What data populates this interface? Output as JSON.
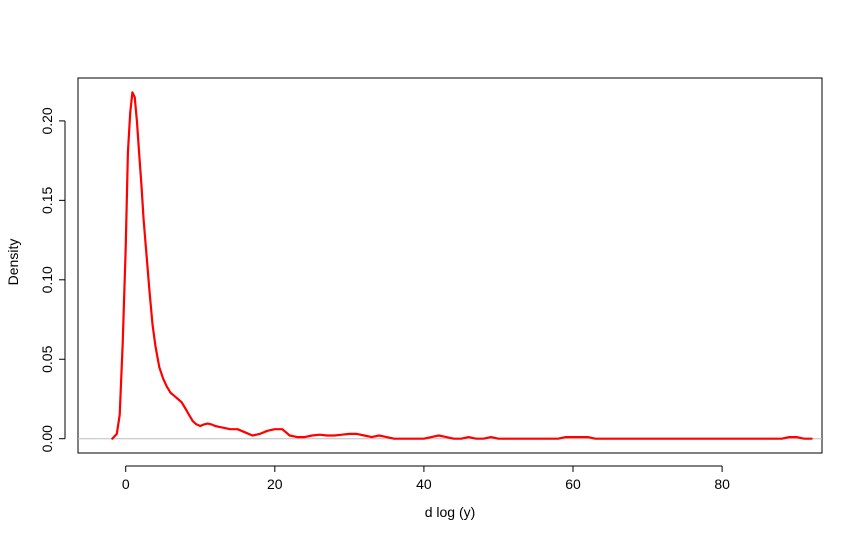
{
  "chart_data": {
    "type": "line",
    "title": "",
    "xlabel": "d log (y)",
    "ylabel": "Density",
    "xlim": [
      -6.4,
      93.4
    ],
    "ylim": [
      -0.009,
      0.227
    ],
    "x_ticks": [
      0,
      20,
      40,
      60,
      80
    ],
    "y_ticks": [
      0.0,
      0.05,
      0.1,
      0.15,
      0.2
    ],
    "x_tick_labels": [
      "0",
      "20",
      "40",
      "60",
      "80"
    ],
    "y_tick_labels": [
      "0.00",
      "0.05",
      "0.10",
      "0.15",
      "0.20"
    ],
    "grid": false,
    "baseline": 0,
    "line_color": "#ff0000",
    "baseline_color": "#bebebe",
    "series": [
      {
        "x": [
          -1.8,
          -1.2,
          -0.8,
          -0.4,
          0,
          0.3,
          0.6,
          0.9,
          1.2,
          1.5,
          1.8,
          2.1,
          2.4,
          2.8,
          3.2,
          3.6,
          4.0,
          4.5,
          5.0,
          5.5,
          6.0,
          6.5,
          7.0,
          7.5,
          8.0,
          8.5,
          9.0,
          9.5,
          10.0,
          10.5,
          11.0,
          11.5,
          12.0,
          12.5,
          13.0,
          14.0,
          15.0,
          16.0,
          17.0,
          18.0,
          19.0,
          20.0,
          21.0,
          22.0,
          23.0,
          24.0,
          25.0,
          26.0,
          27.0,
          28.0,
          29.0,
          30.0,
          31.0,
          32.0,
          33.0,
          34.0,
          35.0,
          36.0,
          37.0,
          38.0,
          39.0,
          40.0,
          41.0,
          42.0,
          43.0,
          44.0,
          45.0,
          46.0,
          47.0,
          48.0,
          49.0,
          50.0,
          52.0,
          54.0,
          56.0,
          58.0,
          59.0,
          60.0,
          61.0,
          62.0,
          63.0,
          65.0,
          70.0,
          75.0,
          80.0,
          85.0,
          88.0,
          89.0,
          90.0,
          91.0,
          92.0
        ],
        "y": [
          0.0,
          0.003,
          0.015,
          0.06,
          0.12,
          0.18,
          0.205,
          0.218,
          0.215,
          0.2,
          0.18,
          0.16,
          0.138,
          0.115,
          0.092,
          0.072,
          0.058,
          0.045,
          0.038,
          0.033,
          0.029,
          0.027,
          0.025,
          0.023,
          0.019,
          0.015,
          0.011,
          0.009,
          0.008,
          0.009,
          0.0095,
          0.009,
          0.008,
          0.0075,
          0.007,
          0.006,
          0.006,
          0.004,
          0.002,
          0.003,
          0.005,
          0.006,
          0.006,
          0.002,
          0.001,
          0.001,
          0.002,
          0.0025,
          0.002,
          0.002,
          0.0025,
          0.003,
          0.003,
          0.002,
          0.001,
          0.002,
          0.001,
          0.0,
          0.0,
          0.0,
          0.0,
          0.0,
          0.001,
          0.002,
          0.001,
          0.0,
          0.0,
          0.001,
          0.0,
          0.0,
          0.001,
          0.0,
          0.0,
          0.0,
          0.0,
          0.0,
          0.001,
          0.001,
          0.001,
          0.001,
          0.0,
          0.0,
          0.0,
          0.0,
          0.0,
          0.0,
          0.0,
          0.001,
          0.001,
          0.0,
          0.0
        ]
      }
    ]
  }
}
